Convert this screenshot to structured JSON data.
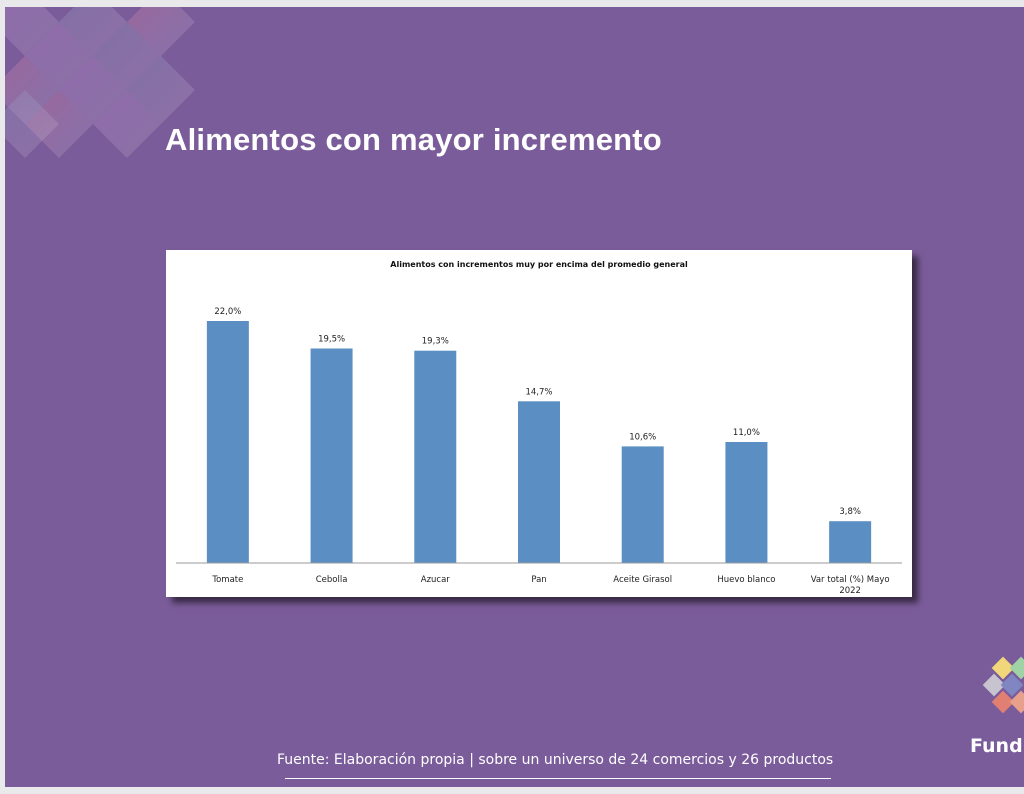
{
  "slide": {
    "title": "Alimentos con mayor incremento",
    "footer": "Fuente: Elaboración propia | sobre un universo de 24 comercios y 26 productos",
    "logo_text": "Fundl"
  },
  "colors": {
    "background": "#7b5c9a",
    "bar": "#5b8fc3"
  },
  "chart_data": {
    "type": "bar",
    "title": "Alimentos con incrementos muy por encima del promedio general",
    "categories": [
      "Tomate",
      "Cebolla",
      "Azucar",
      "Pan",
      "Aceite Girasol",
      "Huevo blanco",
      "Var total (%) Mayo 2022"
    ],
    "category_lines": [
      [
        "Tomate"
      ],
      [
        "Cebolla"
      ],
      [
        "Azucar"
      ],
      [
        "Pan"
      ],
      [
        "Aceite Girasol"
      ],
      [
        "Huevo blanco"
      ],
      [
        "Var total (%) Mayo",
        "2022"
      ]
    ],
    "values": [
      22.0,
      19.5,
      19.3,
      14.7,
      10.6,
      11.0,
      3.8
    ],
    "labels": [
      "22,0%",
      "19,5%",
      "19,3%",
      "14,7%",
      "10,6%",
      "11,0%",
      "3,8%"
    ],
    "xlabel": "",
    "ylabel": "",
    "ylim": [
      0,
      25
    ],
    "grid": false
  }
}
